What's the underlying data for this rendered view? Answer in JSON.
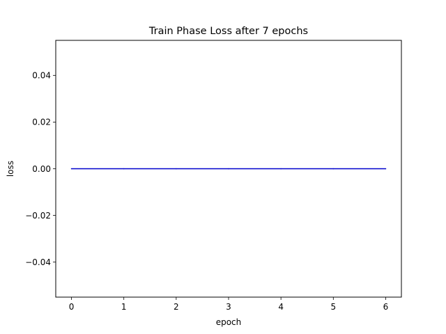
{
  "chart_data": {
    "type": "line",
    "title": "Train Phase Loss after 7 epochs",
    "xlabel": "epoch",
    "ylabel": "loss",
    "x": [
      0,
      1,
      2,
      3,
      4,
      5,
      6
    ],
    "xlim": [
      -0.3,
      6.3
    ],
    "ylim": [
      -0.055,
      0.055
    ],
    "xticks": [
      0,
      1,
      2,
      3,
      4,
      5,
      6
    ],
    "xtick_labels": [
      "0",
      "1",
      "2",
      "3",
      "4",
      "5",
      "6"
    ],
    "yticks": [
      -0.04,
      -0.02,
      0.0,
      0.02,
      0.04
    ],
    "ytick_labels": [
      "−0.04",
      "−0.02",
      "0.00",
      "0.02",
      "0.04"
    ],
    "grid": false,
    "series": [
      {
        "values": [
          0,
          0,
          0,
          0,
          0,
          0,
          0
        ],
        "color": "#0000cc"
      }
    ]
  }
}
